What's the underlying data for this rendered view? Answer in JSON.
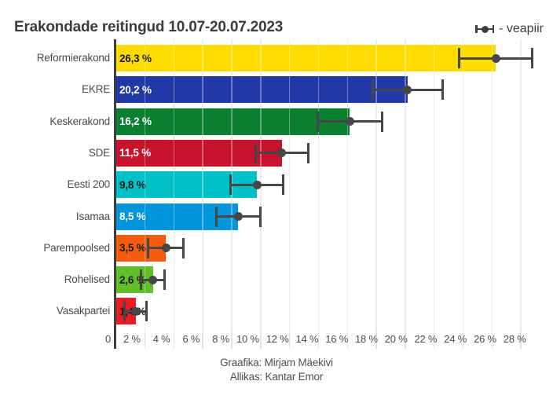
{
  "header": {
    "title": "Erakondade reitingud 10.07-20.07.2023",
    "legend_label": "- veapiir"
  },
  "chart_data": {
    "type": "bar",
    "orientation": "horizontal",
    "title": "Erakondade reitingud 10.07-20.07.2023",
    "legend": "veapiir (error margin)",
    "categories": [
      "Reformierakond",
      "EKRE",
      "Keskerakond",
      "SDE",
      "Eesti 200",
      "Isamaa",
      "Parempoolsed",
      "Rohelised",
      "Vasakpartei"
    ],
    "values": [
      26.3,
      20.2,
      16.2,
      11.5,
      9.8,
      8.5,
      3.5,
      2.6,
      1.4
    ],
    "value_labels": [
      "26,3 %",
      "20,2 %",
      "16,2 %",
      "11,5 %",
      "9,8 %",
      "8,5 %",
      "3,5 %",
      "2,6 %",
      "1,4 %"
    ],
    "veapiir": [
      2.6,
      2.5,
      2.3,
      1.9,
      1.9,
      1.6,
      1.3,
      0.9,
      0.85
    ],
    "bar_colors": [
      "#FFDC00",
      "#2238A8",
      "#0A8030",
      "#C8122E",
      "#00C1C8",
      "#0095DC",
      "#F75C0E",
      "#60BE29",
      "#EC1C24"
    ],
    "value_label_colors": [
      "#1a1a1a",
      "#ffffff",
      "#ffffff",
      "#ffffff",
      "#1a1a1a",
      "#ffffff",
      "#1a1a1a",
      "#1a1a1a",
      "#1a1a1a"
    ],
    "xlim": [
      0,
      29.5
    ],
    "grid": true,
    "xticks": [
      {
        "value": 0,
        "label": "0"
      },
      {
        "value": 2,
        "label": "2 %"
      },
      {
        "value": 4,
        "label": "4 %"
      },
      {
        "value": 6,
        "label": "6 %"
      },
      {
        "value": 8,
        "label": "8 %"
      },
      {
        "value": 10,
        "label": "10 %"
      },
      {
        "value": 12,
        "label": "12 %"
      },
      {
        "value": 14,
        "label": "14 %"
      },
      {
        "value": 16,
        "label": "16 %"
      },
      {
        "value": 18,
        "label": "18 %"
      },
      {
        "value": 20,
        "label": "20 %"
      },
      {
        "value": 22,
        "label": "22 %"
      },
      {
        "value": 24,
        "label": "24 %"
      },
      {
        "value": 26,
        "label": "26 %"
      },
      {
        "value": 28,
        "label": "28 %"
      }
    ]
  },
  "colors": {
    "errorbar": "#474747",
    "gridline": "#e4e4e4",
    "axisline": "#3f3f3f",
    "label_text": "#4b4b4b",
    "title_text": "#3c3c3c"
  },
  "footer": {
    "line1": "Graafika: Mirjam Mäekivi",
    "line2": "Allikas: Kantar Emor"
  }
}
